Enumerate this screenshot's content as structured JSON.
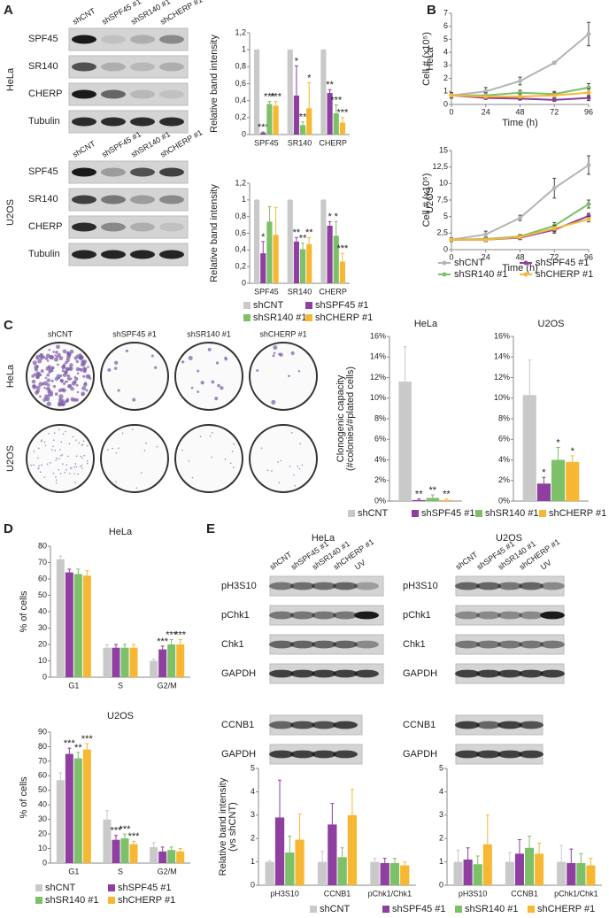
{
  "panels": [
    "A",
    "B",
    "C",
    "D",
    "E"
  ],
  "blots_a": {
    "cell_lines": [
      "HeLa",
      "U2OS"
    ],
    "lanes": [
      "shCNT",
      "shSPF45 #1",
      "shSR140 #1",
      "shCHERP #1"
    ],
    "proteins": [
      "SPF45",
      "SR140",
      "CHERP",
      "Tubulin"
    ]
  },
  "colony_c": {
    "cell_lines": [
      "HeLa",
      "U2OS"
    ],
    "conditions": [
      "shCNT",
      "shSPF45 #1",
      "shSR140 #1",
      "shCHERP #1"
    ]
  },
  "blots_e": {
    "titles": [
      "HeLa",
      "U2OS"
    ],
    "lanes": [
      "shCNT",
      "shSPF45 #1",
      "shSR140 #1",
      "shCHERP #1",
      "UV"
    ],
    "proteins": [
      "pH3S10",
      "pChk1",
      "Chk1",
      "GAPDH"
    ],
    "proteins_2": [
      "CCNB1",
      "GAPDH"
    ]
  },
  "chart_data": [
    {
      "type": "bar",
      "ylabel": "Relative band intensity",
      "categories": [
        "SPF45",
        "SR140",
        "CHERP"
      ],
      "ylim": [
        0,
        1.2
      ],
      "yticks": [
        0,
        {
          "value": 0.2,
          "label": "0,2"
        },
        {
          "value": 0.4,
          "label": "0,4"
        },
        {
          "value": 0.6,
          "label": "0,6"
        },
        {
          "value": 0.8,
          "label": "0,8"
        },
        1,
        {
          "value": 1.2,
          "label": "1,2"
        }
      ],
      "series": [
        {
          "name": "shCNT",
          "color": "#c9c9c9",
          "values": [
            1,
            1,
            1
          ],
          "errors": [
            0,
            0,
            0
          ]
        },
        {
          "name": "shSPF45 #1",
          "color": "#8e3f9f",
          "values": [
            0.02,
            0.46,
            0.49
          ],
          "errors": [
            0.01,
            0.35,
            0.04
          ],
          "significance": [
            "***",
            "*",
            "**"
          ]
        },
        {
          "name": "shSR140 #1",
          "color": "#7cc068",
          "values": [
            0.36,
            0.11,
            0.25
          ],
          "errors": [
            0.03,
            0.04,
            0.1
          ],
          "significance": [
            "***",
            "**",
            "***"
          ]
        },
        {
          "name": "shCHERP #1",
          "color": "#f7b733",
          "values": [
            0.34,
            0.31,
            0.14
          ],
          "errors": [
            0.05,
            0.3,
            0.06
          ],
          "significance": [
            "***",
            "*",
            "***"
          ]
        }
      ]
    },
    {
      "type": "bar",
      "ylabel": "Relative band intensity",
      "categories": [
        "SPF45",
        "SR140",
        "CHERP"
      ],
      "ylim": [
        0,
        1.2
      ],
      "yticks": [
        0,
        {
          "value": 0.2,
          "label": "0,2"
        },
        {
          "value": 0.4,
          "label": "0,4"
        },
        {
          "value": 0.6,
          "label": "0,6"
        },
        {
          "value": 0.8,
          "label": "0,8"
        },
        1,
        {
          "value": 1.2,
          "label": "1,2"
        }
      ],
      "series": [
        {
          "name": "shCNT",
          "color": "#c9c9c9",
          "values": [
            1,
            1,
            1
          ],
          "errors": [
            0,
            0,
            0
          ]
        },
        {
          "name": "shSPF45 #1",
          "color": "#8e3f9f",
          "values": [
            0.36,
            0.5,
            0.69
          ],
          "errors": [
            0.14,
            0.05,
            0.05
          ],
          "significance": [
            "*",
            "**",
            "*"
          ]
        },
        {
          "name": "shSR140 #1",
          "color": "#7cc068",
          "values": [
            0.74,
            0.41,
            0.57
          ],
          "errors": [
            0.18,
            0.07,
            0.17
          ],
          "significance": [
            null,
            "**",
            "*"
          ]
        },
        {
          "name": "shCHERP #1",
          "color": "#f7b733",
          "values": [
            0.58,
            0.47,
            0.26
          ],
          "errors": [
            0.33,
            0.08,
            0.1
          ],
          "significance": [
            null,
            "**",
            "***"
          ]
        }
      ]
    },
    {
      "type": "line",
      "row_label": "HeLa",
      "ylabel": "Cell # (x10⁵)",
      "xlabel": "Time (h)",
      "x": [
        0,
        24,
        48,
        72,
        96
      ],
      "xlim": [
        0,
        96
      ],
      "xticks": [
        0,
        24,
        48,
        72,
        96
      ],
      "ylim": [
        0,
        7
      ],
      "yticks": [
        0,
        1,
        2,
        3,
        4,
        5,
        6,
        7
      ],
      "series": [
        {
          "name": "shCNT",
          "color": "#b5b5b5",
          "values": [
            0.7,
            1.0,
            1.8,
            3.2,
            5.4
          ],
          "errors": [
            0.2,
            0.3,
            0.3,
            0.1,
            0.9
          ]
        },
        {
          "name": "shSPF45 #1",
          "color": "#8e3f9f",
          "values": [
            0.7,
            0.5,
            0.45,
            0.35,
            0.5
          ],
          "errors": [
            0.2,
            0.1,
            0.1,
            0.1,
            0.2
          ]
        },
        {
          "name": "shSR140 #1",
          "color": "#7cc068",
          "values": [
            0.7,
            0.7,
            0.9,
            0.8,
            1.3
          ],
          "errors": [
            0.2,
            0.2,
            0.2,
            0.2,
            0.3
          ]
        },
        {
          "name": "shCHERP #1",
          "color": "#f7b733",
          "values": [
            0.7,
            0.6,
            0.6,
            0.7,
            0.9
          ],
          "errors": [
            0.2,
            0.1,
            0.2,
            0.2,
            0.3
          ]
        }
      ]
    },
    {
      "type": "line",
      "row_label": "U2OS",
      "ylabel": "Cell # (x10⁵)",
      "xlabel": "Time (h)",
      "x": [
        0,
        24,
        48,
        72,
        96
      ],
      "xlim": [
        0,
        96
      ],
      "xticks": [
        0,
        24,
        48,
        72,
        96
      ],
      "ylim": [
        0,
        15
      ],
      "yticks": [
        0,
        {
          "value": 2.5,
          "label": "2,5"
        },
        5,
        {
          "value": 7.5,
          "label": "7,5"
        },
        10,
        {
          "value": 12.5,
          "label": "12,5"
        },
        15
      ],
      "series": [
        {
          "name": "shCNT",
          "color": "#b5b5b5",
          "values": [
            1.5,
            2.3,
            4.8,
            9.3,
            12.8
          ],
          "errors": [
            0.3,
            0.5,
            0.4,
            1.5,
            1.4
          ]
        },
        {
          "name": "shSPF45 #1",
          "color": "#8e3f9f",
          "values": [
            1.5,
            1.5,
            1.8,
            3.0,
            5.1
          ],
          "errors": [
            0.3,
            0.3,
            0.3,
            0.5,
            0.4
          ]
        },
        {
          "name": "shSR140 #1",
          "color": "#7cc068",
          "values": [
            1.5,
            1.6,
            2.0,
            3.6,
            6.9
          ],
          "errors": [
            0.3,
            0.3,
            0.3,
            0.5,
            0.6
          ]
        },
        {
          "name": "shCHERP #1",
          "color": "#f7b733",
          "values": [
            1.5,
            1.5,
            1.9,
            3.2,
            4.6
          ],
          "errors": [
            0.3,
            0.3,
            0.3,
            0.5,
            0.4
          ]
        }
      ]
    },
    {
      "type": "bar",
      "title": "HeLa",
      "ylabel": [
        "Clonogenic capacity",
        "(#colonies/#plated cells)"
      ],
      "ylim": [
        0,
        16
      ],
      "yticks": [
        {
          "value": 0,
          "label": "0%"
        },
        {
          "value": 2,
          "label": "2%"
        },
        {
          "value": 4,
          "label": "4%"
        },
        {
          "value": 6,
          "label": "6%"
        },
        {
          "value": 8,
          "label": "8%"
        },
        {
          "value": 10,
          "label": "10%"
        },
        {
          "value": 12,
          "label": "12%"
        },
        {
          "value": 14,
          "label": "14%"
        },
        {
          "value": 16,
          "label": "16%"
        }
      ],
      "series": [
        {
          "name": "shCNT",
          "color": "#c9c9c9",
          "values": [
            11.6
          ],
          "errors": [
            3.4
          ]
        },
        {
          "name": "shSPF45 #1",
          "color": "#8e3f9f",
          "values": [
            0.1
          ],
          "errors": [
            0.1
          ],
          "significance": [
            "**"
          ]
        },
        {
          "name": "shSR140 #1",
          "color": "#7cc068",
          "values": [
            0.3
          ],
          "errors": [
            0.3
          ],
          "significance": [
            "**"
          ]
        },
        {
          "name": "shCHERP #1",
          "color": "#f7b733",
          "values": [
            0.1
          ],
          "errors": [
            0.1
          ],
          "significance": [
            "**"
          ]
        }
      ]
    },
    {
      "type": "bar",
      "title": "U2OS",
      "ylim": [
        0,
        16
      ],
      "yticks": [
        {
          "value": 0,
          "label": "0%"
        },
        {
          "value": 2,
          "label": "2%"
        },
        {
          "value": 4,
          "label": "4%"
        },
        {
          "value": 6,
          "label": "6%"
        },
        {
          "value": 8,
          "label": "8%"
        },
        {
          "value": 10,
          "label": "10%"
        },
        {
          "value": 12,
          "label": "12%"
        },
        {
          "value": 14,
          "label": "14%"
        },
        {
          "value": 16,
          "label": "16%"
        }
      ],
      "series": [
        {
          "name": "shCNT",
          "color": "#c9c9c9",
          "values": [
            10.3
          ],
          "errors": [
            3.4
          ]
        },
        {
          "name": "shSPF45 #1",
          "color": "#8e3f9f",
          "values": [
            1.7
          ],
          "errors": [
            0.6
          ],
          "significance": [
            "*"
          ]
        },
        {
          "name": "shSR140 #1",
          "color": "#7cc068",
          "values": [
            4.0
          ],
          "errors": [
            1.2
          ],
          "significance": [
            "*"
          ]
        },
        {
          "name": "shCHERP #1",
          "color": "#f7b733",
          "values": [
            3.8
          ],
          "errors": [
            0.6
          ],
          "significance": [
            "*"
          ]
        }
      ]
    },
    {
      "type": "bar",
      "title": "HeLa",
      "ylabel": "% of cells",
      "categories": [
        "G1",
        "S",
        "G2/M"
      ],
      "ylim": [
        0,
        80
      ],
      "yticks": [
        0,
        10,
        20,
        30,
        40,
        50,
        60,
        70,
        80
      ],
      "series": [
        {
          "name": "shCNT",
          "color": "#c9c9c9",
          "values": [
            72,
            18,
            10
          ],
          "errors": [
            2,
            2,
            1
          ]
        },
        {
          "name": "shSPF45 #1",
          "color": "#8e3f9f",
          "values": [
            64,
            18,
            17
          ],
          "errors": [
            2,
            2,
            2
          ],
          "significance": [
            null,
            null,
            "***"
          ]
        },
        {
          "name": "shSR140 #1",
          "color": "#7cc068",
          "values": [
            63,
            18,
            20
          ],
          "errors": [
            3,
            2,
            3
          ],
          "significance": [
            null,
            null,
            "***"
          ]
        },
        {
          "name": "shCHERP #1",
          "color": "#f7b733",
          "values": [
            62,
            18,
            20
          ],
          "errors": [
            3,
            2,
            3
          ],
          "significance": [
            null,
            null,
            "***"
          ]
        }
      ]
    },
    {
      "type": "bar",
      "title": "U2OS",
      "ylabel": "% of cells",
      "categories": [
        "G1",
        "S",
        "G2/M"
      ],
      "ylim": [
        0,
        90
      ],
      "yticks": [
        0,
        10,
        20,
        30,
        40,
        50,
        60,
        70,
        80,
        90
      ],
      "series": [
        {
          "name": "shCNT",
          "color": "#c9c9c9",
          "values": [
            57,
            30,
            11
          ],
          "errors": [
            5,
            6,
            3
          ]
        },
        {
          "name": "shSPF45 #1",
          "color": "#8e3f9f",
          "values": [
            75,
            16,
            8
          ],
          "errors": [
            4,
            3,
            3
          ],
          "significance": [
            "***",
            "***",
            null
          ]
        },
        {
          "name": "shSR140 #1",
          "color": "#7cc068",
          "values": [
            72,
            17,
            9
          ],
          "errors": [
            4,
            3,
            2
          ],
          "significance": [
            "**",
            "***",
            null
          ]
        },
        {
          "name": "shCHERP #1",
          "color": "#f7b733",
          "values": [
            78,
            13,
            8
          ],
          "errors": [
            4,
            2,
            2
          ],
          "significance": [
            "***",
            "***",
            null
          ]
        }
      ]
    },
    {
      "type": "bar",
      "ylabel": [
        "Relative band intensity",
        "(vs shCNT)"
      ],
      "categories": [
        "pH3S10",
        "CCNB1",
        "pChk1/Chk1"
      ],
      "ylim": [
        0,
        5
      ],
      "yticks": [
        0,
        1,
        2,
        3,
        4,
        5
      ],
      "series": [
        {
          "name": "shCNT",
          "color": "#c9c9c9",
          "values": [
            1,
            1,
            1
          ],
          "errors": [
            0.05,
            0.45,
            0.15
          ]
        },
        {
          "name": "shSPF45 #1",
          "color": "#8e3f9f",
          "values": [
            2.9,
            2.6,
            0.95
          ],
          "errors": [
            1.6,
            0.9,
            0.2
          ]
        },
        {
          "name": "shSR140 #1",
          "color": "#7cc068",
          "values": [
            1.4,
            1.2,
            0.95
          ],
          "errors": [
            0.7,
            0.4,
            0.2
          ]
        },
        {
          "name": "shCHERP #1",
          "color": "#f7b733",
          "values": [
            1.95,
            3.0,
            0.85
          ],
          "errors": [
            1.1,
            1.1,
            0.15
          ]
        }
      ]
    },
    {
      "type": "bar",
      "categories": [
        "pH3S10",
        "CCNB1",
        "pChk1/Chk1"
      ],
      "ylim": [
        0,
        5
      ],
      "yticks": [
        0,
        1,
        2,
        3,
        4,
        5
      ],
      "series": [
        {
          "name": "shCNT",
          "color": "#c9c9c9",
          "values": [
            1,
            1,
            1
          ],
          "errors": [
            0.5,
            0.4,
            0.7
          ]
        },
        {
          "name": "shSPF45 #1",
          "color": "#8e3f9f",
          "values": [
            1.1,
            1.35,
            0.95
          ],
          "errors": [
            0.5,
            0.6,
            0.6
          ]
        },
        {
          "name": "shSR140 #1",
          "color": "#7cc068",
          "values": [
            0.9,
            1.6,
            0.95
          ],
          "errors": [
            0.35,
            0.5,
            0.4
          ]
        },
        {
          "name": "shCHERP #1",
          "color": "#f7b733",
          "values": [
            1.75,
            1.35,
            0.85
          ],
          "errors": [
            1.25,
            0.45,
            0.3
          ]
        }
      ]
    }
  ]
}
